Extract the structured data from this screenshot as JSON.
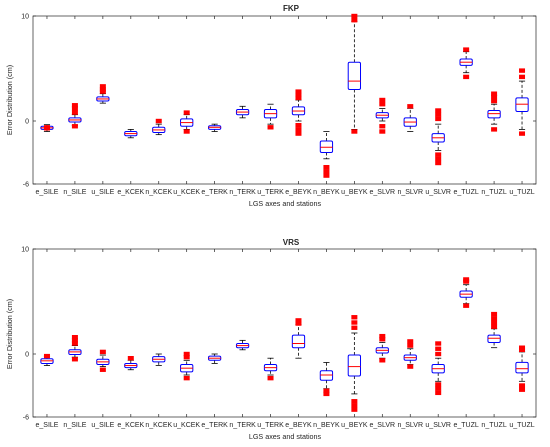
{
  "chart_data": [
    {
      "type": "boxplot",
      "title": "FKP",
      "xlabel": "LGS axes and stations",
      "ylabel": "Error Distribution (cm)",
      "ylim": [
        -6,
        10
      ],
      "yticks": [
        -6,
        0,
        10
      ],
      "grid": false,
      "categories": [
        "e_SILE",
        "n_SILE",
        "u_SILE",
        "e_KCEK",
        "n_KCEK",
        "u_KCEK",
        "e_TERK",
        "n_TERK",
        "u_TERK",
        "e_BEYK",
        "n_BEYK",
        "u_BEYK",
        "e_SLVR",
        "n_SLVR",
        "u_SLVR",
        "e_TUZL",
        "n_TUZL",
        "u_TUZL"
      ],
      "boxes": [
        {
          "q1": -0.8,
          "median": -0.65,
          "q3": -0.5,
          "whisker_low": -1.0,
          "whisker_high": -0.35,
          "outliers": [
            -0.6,
            -0.7
          ]
        },
        {
          "q1": -0.1,
          "median": 0.1,
          "q3": 0.3,
          "whisker_low": -0.4,
          "whisker_high": 0.6,
          "outliers": [
            0.8,
            1.2,
            1.5,
            -0.5
          ]
        },
        {
          "q1": 1.9,
          "median": 2.1,
          "q3": 2.3,
          "whisker_low": 1.7,
          "whisker_high": 2.6,
          "outliers": [
            2.8,
            3.0,
            3.3
          ]
        },
        {
          "q1": -1.4,
          "median": -1.2,
          "q3": -1.0,
          "whisker_low": -1.6,
          "whisker_high": -0.8,
          "outliers": []
        },
        {
          "q1": -1.1,
          "median": -0.85,
          "q3": -0.6,
          "whisker_low": -1.3,
          "whisker_high": -0.3,
          "outliers": [
            0.0
          ]
        },
        {
          "q1": -0.5,
          "median": -0.15,
          "q3": 0.2,
          "whisker_low": -0.8,
          "whisker_high": 0.6,
          "outliers": [
            0.8,
            -1.0
          ]
        },
        {
          "q1": -0.8,
          "median": -0.6,
          "q3": -0.45,
          "whisker_low": -1.0,
          "whisker_high": -0.3,
          "outliers": []
        },
        {
          "q1": 0.6,
          "median": 0.85,
          "q3": 1.1,
          "whisker_low": 0.3,
          "whisker_high": 1.4,
          "outliers": []
        },
        {
          "q1": 0.3,
          "median": 0.7,
          "q3": 1.1,
          "whisker_low": -0.3,
          "whisker_high": 1.6,
          "outliers": [
            -0.6
          ]
        },
        {
          "q1": 0.6,
          "median": 0.95,
          "q3": 1.35,
          "whisker_low": 0.0,
          "whisker_high": 2.0,
          "outliers": [
            2.2,
            2.5,
            2.8,
            -0.4,
            -0.8,
            -1.2
          ]
        },
        {
          "q1": -3.0,
          "median": -2.5,
          "q3": -1.9,
          "whisker_low": -3.6,
          "whisker_high": -1.0,
          "outliers": [
            -4.4,
            -4.8,
            -5.2
          ]
        },
        {
          "q1": 3.0,
          "median": 3.8,
          "q3": 5.6,
          "whisker_low": -0.8,
          "whisker_high": 9.5,
          "outliers": [
            9.6,
            10.0,
            -1.0
          ]
        },
        {
          "q1": 0.3,
          "median": 0.55,
          "q3": 0.8,
          "whisker_low": 0.0,
          "whisker_high": 1.2,
          "outliers": [
            1.6,
            2.0,
            -0.5,
            -1.0
          ]
        },
        {
          "q1": -0.5,
          "median": -0.1,
          "q3": 0.3,
          "whisker_low": -1.0,
          "whisker_high": 1.2,
          "outliers": [
            1.4
          ]
        },
        {
          "q1": -2.0,
          "median": -1.6,
          "q3": -1.2,
          "whisker_low": -2.8,
          "whisker_high": -0.3,
          "outliers": [
            0.2,
            0.6,
            1.0,
            -3.2,
            -3.6,
            -4.0
          ]
        },
        {
          "q1": 5.3,
          "median": 5.6,
          "q3": 5.9,
          "whisker_low": 4.6,
          "whisker_high": 6.6,
          "outliers": [
            6.8,
            4.2
          ]
        },
        {
          "q1": 0.3,
          "median": 0.7,
          "q3": 1.0,
          "whisker_low": -0.3,
          "whisker_high": 1.6,
          "outliers": [
            1.9,
            2.3,
            2.6,
            -0.8
          ]
        },
        {
          "q1": 0.9,
          "median": 1.6,
          "q3": 2.2,
          "whisker_low": -0.8,
          "whisker_high": 3.8,
          "outliers": [
            4.2,
            4.8,
            -1.2
          ]
        }
      ]
    },
    {
      "type": "boxplot",
      "title": "VRS",
      "xlabel": "LGS axes and stations",
      "ylabel": "Error Distribution (cm)",
      "ylim": [
        -6,
        10
      ],
      "yticks": [
        -6,
        0,
        10
      ],
      "grid": false,
      "categories": [
        "e_SILE",
        "n_SILE",
        "u_SILE",
        "e_KCEK",
        "n_KCEK",
        "u_KCEK",
        "e_TERK",
        "n_TERK",
        "u_TERK",
        "e_BEYK",
        "n_BEYK",
        "u_BEYK",
        "e_SLVR",
        "n_SLVR",
        "u_SLVR",
        "e_TUZL",
        "n_TUZL",
        "u_TUZL"
      ],
      "boxes": [
        {
          "q1": -0.9,
          "median": -0.65,
          "q3": -0.45,
          "whisker_low": -1.1,
          "whisker_high": -0.2,
          "outliers": [
            -0.2
          ]
        },
        {
          "q1": -0.05,
          "median": 0.2,
          "q3": 0.4,
          "whisker_low": -0.3,
          "whisker_high": 0.8,
          "outliers": [
            1.0,
            1.3,
            1.6,
            -0.5
          ]
        },
        {
          "q1": -1.0,
          "median": -0.75,
          "q3": -0.5,
          "whisker_low": -1.2,
          "whisker_high": -0.1,
          "outliers": [
            0.2,
            -1.5
          ]
        },
        {
          "q1": -1.3,
          "median": -1.1,
          "q3": -0.9,
          "whisker_low": -1.5,
          "whisker_high": -0.6,
          "outliers": [
            -0.4
          ]
        },
        {
          "q1": -0.75,
          "median": -0.5,
          "q3": -0.25,
          "whisker_low": -1.1,
          "whisker_high": 0.0,
          "outliers": []
        },
        {
          "q1": -1.7,
          "median": -1.35,
          "q3": -1.0,
          "whisker_low": -2.0,
          "whisker_high": -0.6,
          "outliers": [
            -0.3,
            0.0,
            -2.3
          ]
        },
        {
          "q1": -0.6,
          "median": -0.4,
          "q3": -0.2,
          "whisker_low": -0.9,
          "whisker_high": 0.0,
          "outliers": []
        },
        {
          "q1": 0.6,
          "median": 0.8,
          "q3": 1.0,
          "whisker_low": 0.4,
          "whisker_high": 1.3,
          "outliers": []
        },
        {
          "q1": -1.6,
          "median": -1.3,
          "q3": -1.0,
          "whisker_low": -2.0,
          "whisker_high": -0.4,
          "outliers": [
            -2.3
          ]
        },
        {
          "q1": 0.6,
          "median": 1.0,
          "q3": 1.8,
          "whisker_low": -0.4,
          "whisker_high": 2.8,
          "outliers": [
            2.9,
            3.2
          ]
        },
        {
          "q1": -2.5,
          "median": -2.0,
          "q3": -1.6,
          "whisker_low": -3.3,
          "whisker_high": -0.8,
          "outliers": [
            -3.5,
            -3.8
          ]
        },
        {
          "q1": -2.1,
          "median": -1.2,
          "q3": -0.1,
          "whisker_low": -3.8,
          "whisker_high": 2.0,
          "outliers": [
            2.5,
            3.0,
            3.5,
            -4.5,
            -4.9,
            -5.3
          ]
        },
        {
          "q1": 0.1,
          "median": 0.35,
          "q3": 0.6,
          "whisker_low": -0.4,
          "whisker_high": 1.1,
          "outliers": [
            1.4,
            1.7,
            -0.6
          ]
        },
        {
          "q1": -0.6,
          "median": -0.35,
          "q3": -0.1,
          "whisker_low": -1.0,
          "whisker_high": 0.5,
          "outliers": [
            0.8,
            1.2,
            -1.2
          ]
        },
        {
          "q1": -1.8,
          "median": -1.4,
          "q3": -1.0,
          "whisker_low": -2.6,
          "whisker_high": -0.4,
          "outliers": [
            0.0,
            0.5,
            1.0,
            -2.9,
            -3.3,
            -3.7
          ]
        },
        {
          "q1": 5.4,
          "median": 5.7,
          "q3": 6.0,
          "whisker_low": 4.8,
          "whisker_high": 6.6,
          "outliers": [
            6.9,
            7.1,
            4.6
          ]
        },
        {
          "q1": 1.1,
          "median": 1.5,
          "q3": 1.8,
          "whisker_low": 0.6,
          "whisker_high": 2.4,
          "outliers": [
            2.6,
            3.0,
            3.4,
            3.8
          ]
        },
        {
          "q1": -1.8,
          "median": -1.4,
          "q3": -0.8,
          "whisker_low": -2.6,
          "whisker_high": 0.2,
          "outliers": [
            0.4,
            0.6,
            -3.0,
            -3.4
          ]
        }
      ]
    }
  ],
  "colors": {
    "box": "#0000ff",
    "median": "#ff0000",
    "outlier": "#ff0000",
    "whisker": "#000000",
    "axis": "#262626"
  }
}
